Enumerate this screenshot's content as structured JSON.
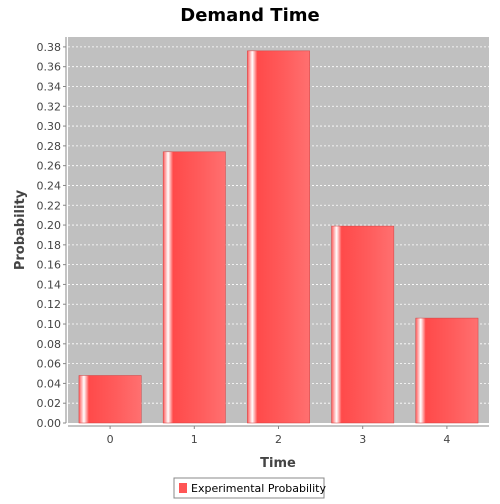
{
  "chart_data": {
    "type": "bar",
    "title": "Demand Time",
    "xlabel": "Time",
    "ylabel": "Probability",
    "categories": [
      "0",
      "1",
      "2",
      "3",
      "4"
    ],
    "series": [
      {
        "name": "Experimental Probability",
        "values": [
          0.048,
          0.274,
          0.376,
          0.199,
          0.106
        ]
      }
    ],
    "ylim": [
      0,
      0.39
    ],
    "yticks": [
      "0.00",
      "0.02",
      "0.04",
      "0.06",
      "0.08",
      "0.10",
      "0.12",
      "0.14",
      "0.16",
      "0.18",
      "0.20",
      "0.22",
      "0.24",
      "0.26",
      "0.28",
      "0.30",
      "0.32",
      "0.34",
      "0.36",
      "0.38"
    ],
    "grid": true,
    "legend_position": "bottom",
    "colors": {
      "bar": "#ff5555",
      "plot_background": "#c0c0c0",
      "grid": "#ffffff"
    }
  }
}
